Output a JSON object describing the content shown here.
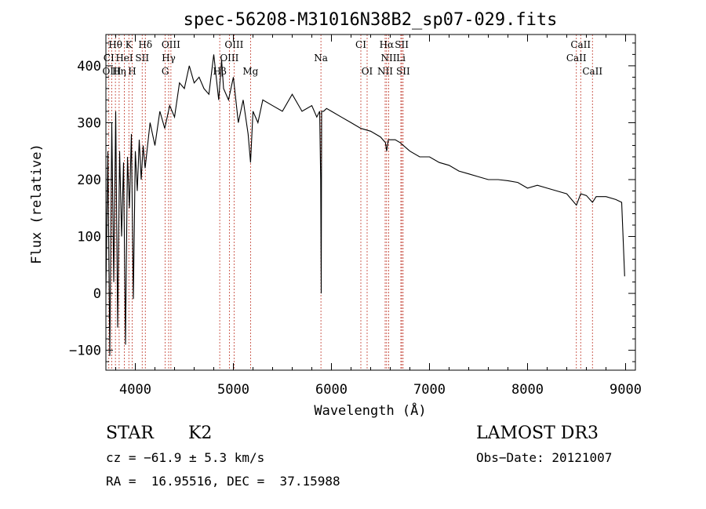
{
  "chart_data": {
    "type": "line",
    "title": "spec-56208-M31016N38B2_sp07-029.fits",
    "xlabel": "Wavelength (Å)",
    "ylabel": "Flux (relative)",
    "xlim": [
      3700,
      9100
    ],
    "ylim": [
      -135,
      455
    ],
    "x_ticks": [
      4000,
      5000,
      6000,
      7000,
      8000,
      9000
    ],
    "y_ticks": [
      -100,
      0,
      100,
      200,
      300,
      400
    ],
    "x_tick_labels": [
      "4000",
      "5000",
      "6000",
      "7000",
      "8000",
      "9000"
    ],
    "y_tick_labels": [
      "−100",
      "0",
      "100",
      "200",
      "300",
      "400"
    ],
    "series": [
      {
        "name": "flux",
        "x": [
          3700,
          3720,
          3740,
          3760,
          3780,
          3800,
          3820,
          3840,
          3860,
          3880,
          3900,
          3920,
          3940,
          3960,
          3980,
          4000,
          4020,
          4040,
          4060,
          4080,
          4100,
          4150,
          4200,
          4250,
          4300,
          4350,
          4400,
          4450,
          4500,
          4550,
          4600,
          4650,
          4700,
          4750,
          4800,
          4850,
          4880,
          4900,
          4950,
          5000,
          5050,
          5100,
          5150,
          5175,
          5200,
          5250,
          5300,
          5400,
          5500,
          5600,
          5700,
          5800,
          5850,
          5880,
          5890,
          5896,
          5900,
          5920,
          5950,
          6000,
          6100,
          6200,
          6300,
          6400,
          6500,
          6550,
          6563,
          6580,
          6650,
          6700,
          6800,
          6900,
          7000,
          7100,
          7200,
          7300,
          7400,
          7500,
          7600,
          7700,
          7800,
          7900,
          8000,
          8100,
          8200,
          8300,
          8400,
          8498,
          8542,
          8600,
          8662,
          8700,
          8800,
          8900,
          8960,
          8990
        ],
        "y": [
          0,
          250,
          -110,
          300,
          20,
          320,
          -60,
          250,
          100,
          230,
          -90,
          240,
          150,
          280,
          -10,
          250,
          180,
          270,
          200,
          260,
          220,
          300,
          260,
          320,
          290,
          330,
          310,
          370,
          360,
          400,
          370,
          380,
          360,
          350,
          420,
          340,
          410,
          360,
          340,
          380,
          300,
          340,
          280,
          230,
          320,
          300,
          340,
          330,
          320,
          350,
          320,
          330,
          310,
          320,
          200,
          0,
          320,
          320,
          325,
          320,
          310,
          300,
          290,
          285,
          275,
          265,
          250,
          270,
          270,
          265,
          250,
          240,
          240,
          230,
          225,
          215,
          210,
          205,
          200,
          200,
          198,
          195,
          185,
          190,
          185,
          180,
          175,
          155,
          175,
          172,
          160,
          170,
          170,
          165,
          160,
          30
        ]
      }
    ],
    "line_labels": [
      {
        "text": "Hθ",
        "x": 3797,
        "row": 0
      },
      {
        "text": "K",
        "x": 3934,
        "row": 0
      },
      {
        "text": "Hδ",
        "x": 4102,
        "row": 0
      },
      {
        "text": "OIII",
        "x": 4363,
        "row": 0
      },
      {
        "text": "OIII",
        "x": 5007,
        "row": 0
      },
      {
        "text": "CI",
        "x": 6300,
        "row": 0
      },
      {
        "text": "Hα",
        "x": 6563,
        "row": 0
      },
      {
        "text": "SII",
        "x": 6717,
        "row": 0
      },
      {
        "text": "CaII",
        "x": 8542,
        "row": 0
      },
      {
        "text": "CI",
        "x": 3730,
        "row": 1
      },
      {
        "text": "HeI",
        "x": 3888,
        "row": 1
      },
      {
        "text": "SII",
        "x": 4070,
        "row": 1
      },
      {
        "text": "Hγ",
        "x": 4340,
        "row": 1
      },
      {
        "text": "OIII",
        "x": 4959,
        "row": 1
      },
      {
        "text": "Na",
        "x": 5893,
        "row": 1
      },
      {
        "text": "NII",
        "x": 6584,
        "row": 1
      },
      {
        "text": "Li",
        "x": 6708,
        "row": 1
      },
      {
        "text": "CaII",
        "x": 8498,
        "row": 1
      },
      {
        "text": "OIII",
        "x": 3760,
        "row": 2
      },
      {
        "text": "Hη",
        "x": 3835,
        "row": 2
      },
      {
        "text": "H",
        "x": 3968,
        "row": 2
      },
      {
        "text": "G",
        "x": 4305,
        "row": 2
      },
      {
        "text": "Hβ",
        "x": 4861,
        "row": 2
      },
      {
        "text": "Mg",
        "x": 5175,
        "row": 2
      },
      {
        "text": "OI",
        "x": 6364,
        "row": 2
      },
      {
        "text": "NII",
        "x": 6548,
        "row": 2
      },
      {
        "text": "SII",
        "x": 6731,
        "row": 2
      },
      {
        "text": "CaII",
        "x": 8662,
        "row": 2
      }
    ],
    "marker_lines": [
      3730,
      3760,
      3797,
      3835,
      3888,
      3934,
      3968,
      4070,
      4102,
      4305,
      4340,
      4363,
      4861,
      4959,
      5007,
      5175,
      5893,
      6300,
      6364,
      6548,
      6563,
      6584,
      6708,
      6717,
      6731,
      8498,
      8542,
      8662
    ]
  },
  "info": {
    "object_type": "STAR",
    "subclass": "K2",
    "survey": "LAMOST DR3",
    "velocity": "cz = −61.9 ± 5.3 km/s",
    "obs_date": "Obs−Date: 20121007",
    "coords": "RA =  16.95516, DEC =  37.15988"
  },
  "colors": {
    "axis": "#000000",
    "spectrum": "#000000",
    "marker": "#c0392b",
    "background": "#ffffff"
  }
}
